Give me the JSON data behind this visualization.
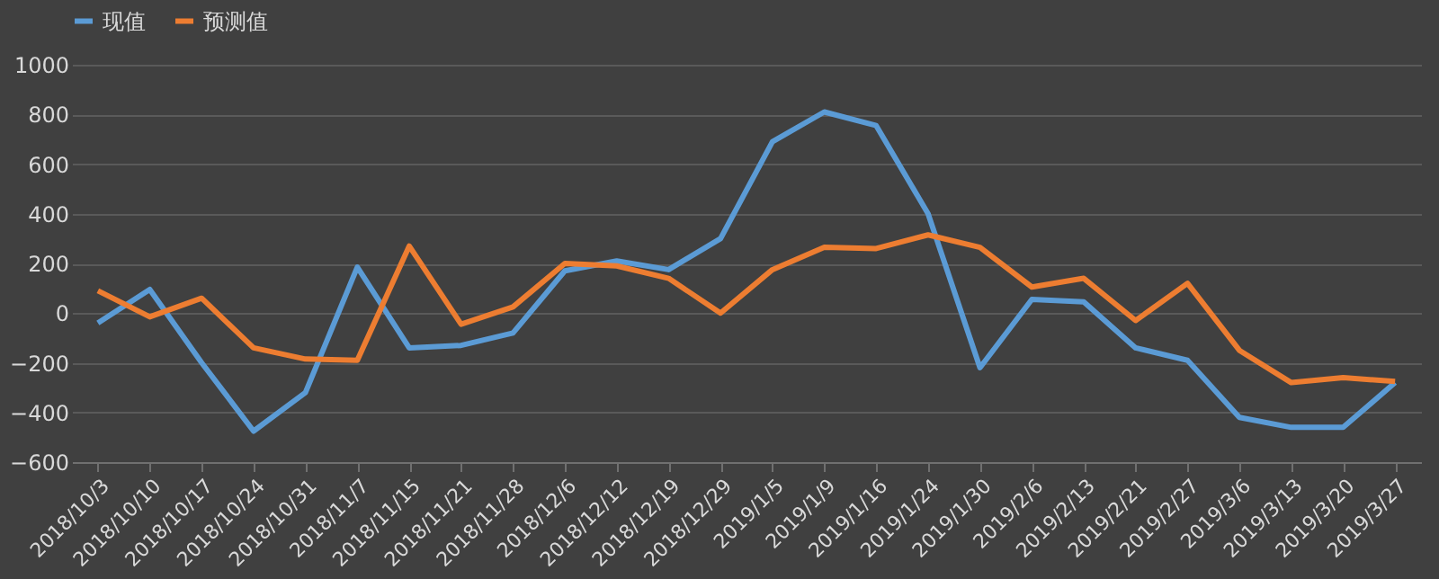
{
  "chart_data": {
    "type": "line",
    "categories": [
      "2018/10/3",
      "2018/10/10",
      "2018/10/17",
      "2018/10/24",
      "2018/10/31",
      "2018/11/7",
      "2018/11/15",
      "2018/11/21",
      "2018/11/28",
      "2018/12/6",
      "2018/12/12",
      "2018/12/19",
      "2018/12/29",
      "2019/1/5",
      "2019/1/9",
      "2019/1/16",
      "2019/1/24",
      "2019/1/30",
      "2019/2/6",
      "2019/2/13",
      "2019/2/21",
      "2019/2/27",
      "2019/3/6",
      "2019/3/13",
      "2019/3/20",
      "2019/3/27"
    ],
    "series": [
      {
        "name": "现值",
        "color": "#5b9bd5",
        "values": [
          -40,
          95,
          -200,
          -475,
          -320,
          185,
          -140,
          -130,
          -80,
          170,
          210,
          175,
          300,
          690,
          810,
          755,
          400,
          -220,
          55,
          45,
          -140,
          -190,
          -420,
          -460,
          -460,
          -280
        ]
      },
      {
        "name": "预测值",
        "color": "#ed7d31",
        "values": [
          90,
          -15,
          60,
          -140,
          -185,
          -190,
          270,
          -45,
          25,
          200,
          190,
          140,
          0,
          175,
          265,
          260,
          315,
          265,
          105,
          140,
          -30,
          120,
          -150,
          -280,
          -260,
          -275
        ]
      }
    ],
    "ylim": [
      -600,
      1000
    ],
    "yticks": [
      -600,
      -400,
      -200,
      0,
      200,
      400,
      600,
      800,
      1000
    ],
    "grid": "y",
    "legend": "top",
    "marker": "none",
    "line_style": "solid"
  }
}
